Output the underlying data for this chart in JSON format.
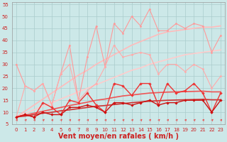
{
  "xlabel": "Vent moyen/en rafales ( km/h )",
  "xlim": [
    -0.5,
    23.5
  ],
  "ylim": [
    5,
    56
  ],
  "yticks": [
    5,
    10,
    15,
    20,
    25,
    30,
    35,
    40,
    45,
    50,
    55
  ],
  "xticks": [
    0,
    1,
    2,
    3,
    4,
    5,
    6,
    7,
    8,
    9,
    10,
    11,
    12,
    13,
    14,
    15,
    16,
    17,
    18,
    19,
    20,
    21,
    22,
    23
  ],
  "background_color": "#cce8e8",
  "grid_color": "#aacccc",
  "x": [
    0,
    1,
    2,
    3,
    4,
    5,
    6,
    7,
    8,
    9,
    10,
    11,
    12,
    13,
    14,
    15,
    16,
    17,
    18,
    19,
    20,
    21,
    22,
    23
  ],
  "line_pink1": [
    30,
    21,
    19,
    22,
    13,
    26,
    38,
    15,
    33,
    46,
    29,
    47,
    43,
    50,
    46,
    53,
    44,
    44,
    47,
    45,
    47,
    46,
    35,
    42
  ],
  "line_pink1_color": "#ff9999",
  "line_pink2": [
    8,
    21,
    19,
    22,
    13,
    26,
    30,
    15,
    19,
    22,
    29,
    38,
    33,
    34,
    35,
    34,
    26,
    30,
    30,
    27,
    30,
    28,
    20,
    25
  ],
  "line_pink2_color": "#ffaaaa",
  "trend_pink1": [
    8,
    10.5,
    13,
    15.5,
    18,
    20.5,
    23,
    25.5,
    27.5,
    30,
    32,
    34,
    36,
    38,
    39.5,
    41,
    42.5,
    43.5,
    44,
    44.5,
    45,
    45.5,
    45.5,
    46
  ],
  "trend_pink1_color": "#ffbbbb",
  "trend_pink2": [
    8,
    9.5,
    11,
    12.5,
    14,
    15.5,
    17,
    18.5,
    20,
    21.5,
    23,
    24.5,
    26,
    27.5,
    28.5,
    30,
    31,
    32,
    33,
    34,
    34.5,
    35,
    35.5,
    36
  ],
  "trend_pink2_color": "#ffcccc",
  "line_red1": [
    8,
    9,
    8,
    14,
    12,
    9,
    15,
    14,
    18,
    13,
    10,
    22,
    21,
    17,
    22,
    22,
    13,
    22,
    18,
    19,
    22,
    18,
    10,
    18
  ],
  "line_red1_color": "#ee3333",
  "line_red2": [
    8,
    9,
    8,
    10,
    9,
    9,
    12,
    12,
    13,
    12,
    10,
    14,
    14,
    13,
    14,
    15,
    13,
    14,
    14,
    15,
    15,
    15,
    10,
    15
  ],
  "line_red2_color": "#cc1111",
  "trend_red1": [
    8,
    8.8,
    9.6,
    10.4,
    11.2,
    12.0,
    12.8,
    13.5,
    14.2,
    15.0,
    15.5,
    16.2,
    16.8,
    17.2,
    17.6,
    18.0,
    18.2,
    18.4,
    18.5,
    18.6,
    18.7,
    18.8,
    18.5,
    18.5
  ],
  "trend_red1_color": "#ee5555",
  "trend_red2": [
    8,
    8.4,
    9.0,
    9.6,
    10.0,
    10.6,
    11.0,
    11.5,
    12.0,
    12.5,
    12.8,
    13.2,
    13.6,
    14.0,
    14.3,
    14.6,
    14.8,
    15.0,
    15.1,
    15.2,
    15.3,
    15.4,
    15.2,
    15.2
  ],
  "trend_red2_color": "#cc3333",
  "label_color": "#cc2222",
  "arrow_color": "#ee4444",
  "label_fontsize": 7
}
